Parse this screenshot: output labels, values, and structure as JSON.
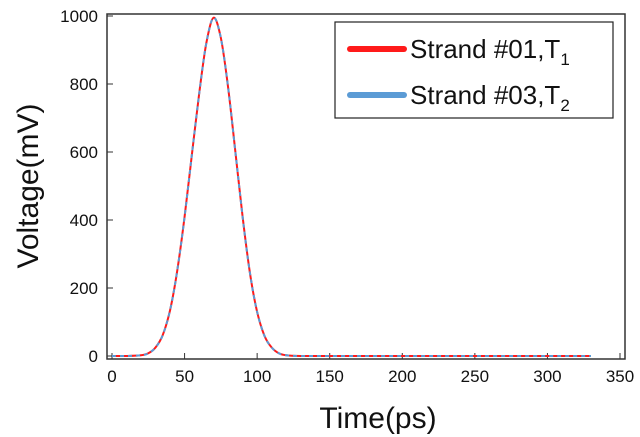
{
  "chart_data": {
    "type": "line",
    "xlabel": "Time(ps)",
    "ylabel": "Voltage(mV)",
    "xlim": [
      0,
      350
    ],
    "ylim": [
      0,
      1000
    ],
    "xticks": [
      0,
      50,
      100,
      150,
      200,
      250,
      300,
      350
    ],
    "yticks": [
      0,
      200,
      400,
      600,
      800,
      1000
    ],
    "grid": false,
    "legend_position": "top-right",
    "series": [
      {
        "name": "Strand #01,T",
        "subscript": "1",
        "color": "#ff1a1a",
        "x": [
          0,
          10,
          20,
          25,
          30,
          35,
          40,
          45,
          50,
          55,
          60,
          65,
          70,
          75,
          80,
          85,
          90,
          95,
          100,
          105,
          110,
          115,
          120,
          130,
          150,
          200,
          250,
          300,
          330
        ],
        "y": [
          0,
          0,
          2,
          8,
          25,
          62,
          135,
          252,
          410,
          590,
          770,
          920,
          995,
          935,
          790,
          600,
          410,
          245,
          130,
          60,
          25,
          8,
          2,
          0,
          0,
          0,
          0,
          0,
          0
        ]
      },
      {
        "name": "Strand #03,T",
        "subscript": "2",
        "color": "#5b9bd5",
        "x": [
          0,
          10,
          20,
          25,
          30,
          35,
          40,
          45,
          50,
          55,
          60,
          65,
          70,
          75,
          80,
          85,
          90,
          95,
          100,
          105,
          110,
          115,
          120,
          130,
          150,
          200,
          250,
          300,
          330
        ],
        "y": [
          0,
          0,
          2,
          8,
          25,
          62,
          135,
          252,
          410,
          590,
          770,
          920,
          995,
          935,
          790,
          600,
          410,
          245,
          130,
          60,
          25,
          8,
          2,
          0,
          0,
          0,
          0,
          0,
          0
        ]
      }
    ]
  }
}
